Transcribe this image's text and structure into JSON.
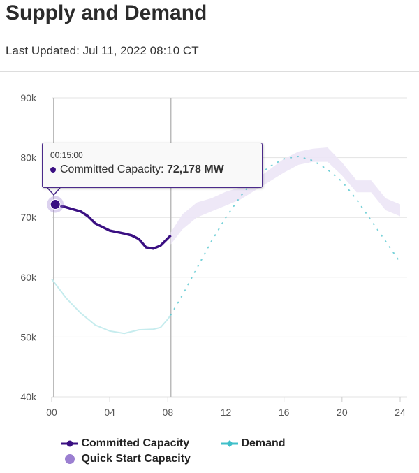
{
  "header": {
    "title": "Supply and Demand",
    "last_updated": "Last Updated: Jul 11, 2022 08:10 CT"
  },
  "tooltip": {
    "time": "00:15:00",
    "series": "Committed Capacity:",
    "value": "72,178 MW"
  },
  "colors": {
    "committed": "#3a0f82",
    "demand": "#3fbfc9",
    "demand_actual": "#c6ecee",
    "quick_start": "#9b7fd1",
    "band": "#ece6f6"
  },
  "chart_data": {
    "type": "line",
    "title": "",
    "xlabel": "",
    "ylabel": "",
    "xlim": [
      0,
      24
    ],
    "ylim": [
      40000,
      90000
    ],
    "x_ticks": [
      "00",
      "04",
      "08",
      "12",
      "16",
      "20",
      "24"
    ],
    "y_ticks": [
      "40k",
      "50k",
      "60k",
      "70k",
      "80k",
      "90k"
    ],
    "grid": true,
    "current_time_hour": 8.2,
    "legend_position": "bottom",
    "series": [
      {
        "name": "Committed Capacity",
        "style": "solid",
        "x": [
          0.25,
          1,
          2,
          2.5,
          3,
          4,
          5,
          5.5,
          6,
          6.5,
          7,
          7.5,
          8,
          8.2
        ],
        "y": [
          72178,
          71700,
          71000,
          70200,
          69000,
          67800,
          67300,
          67000,
          66400,
          65000,
          64800,
          65300,
          66500,
          67000
        ]
      },
      {
        "name": "Demand",
        "style": "solid-light",
        "x": [
          0,
          1,
          2,
          3,
          4,
          5,
          6,
          7,
          7.5,
          8,
          8.2
        ],
        "y": [
          59700,
          56500,
          54000,
          52000,
          51000,
          50600,
          51200,
          51300,
          51600,
          53000,
          53700
        ]
      },
      {
        "name": "Demand",
        "style": "dotted-forecast",
        "x": [
          8.2,
          9,
          10,
          11,
          12,
          13,
          14,
          15,
          16,
          17,
          18,
          19,
          20,
          21,
          22,
          23,
          24
        ],
        "y": [
          53700,
          57000,
          61500,
          66000,
          70000,
          73500,
          76500,
          78500,
          79800,
          80200,
          79500,
          78000,
          76000,
          73000,
          69500,
          66000,
          62500
        ]
      },
      {
        "name": "Quick Start Capacity",
        "style": "band",
        "x": [
          8.2,
          9,
          10,
          11,
          12,
          13,
          14,
          15,
          16,
          17,
          18,
          19,
          20,
          21,
          22,
          23,
          24
        ],
        "low": [
          65500,
          68000,
          70000,
          71000,
          72000,
          73000,
          74500,
          76000,
          77500,
          78800,
          79300,
          79300,
          77000,
          74200,
          74200,
          71200,
          70200
        ],
        "high": [
          67500,
          70500,
          72500,
          73200,
          74300,
          75000,
          76200,
          78000,
          79800,
          81000,
          81500,
          81700,
          79200,
          76200,
          76200,
          73200,
          72200
        ]
      }
    ]
  },
  "legend": [
    {
      "label": "Committed Capacity"
    },
    {
      "label": "Demand"
    },
    {
      "label": "Quick Start Capacity"
    }
  ]
}
